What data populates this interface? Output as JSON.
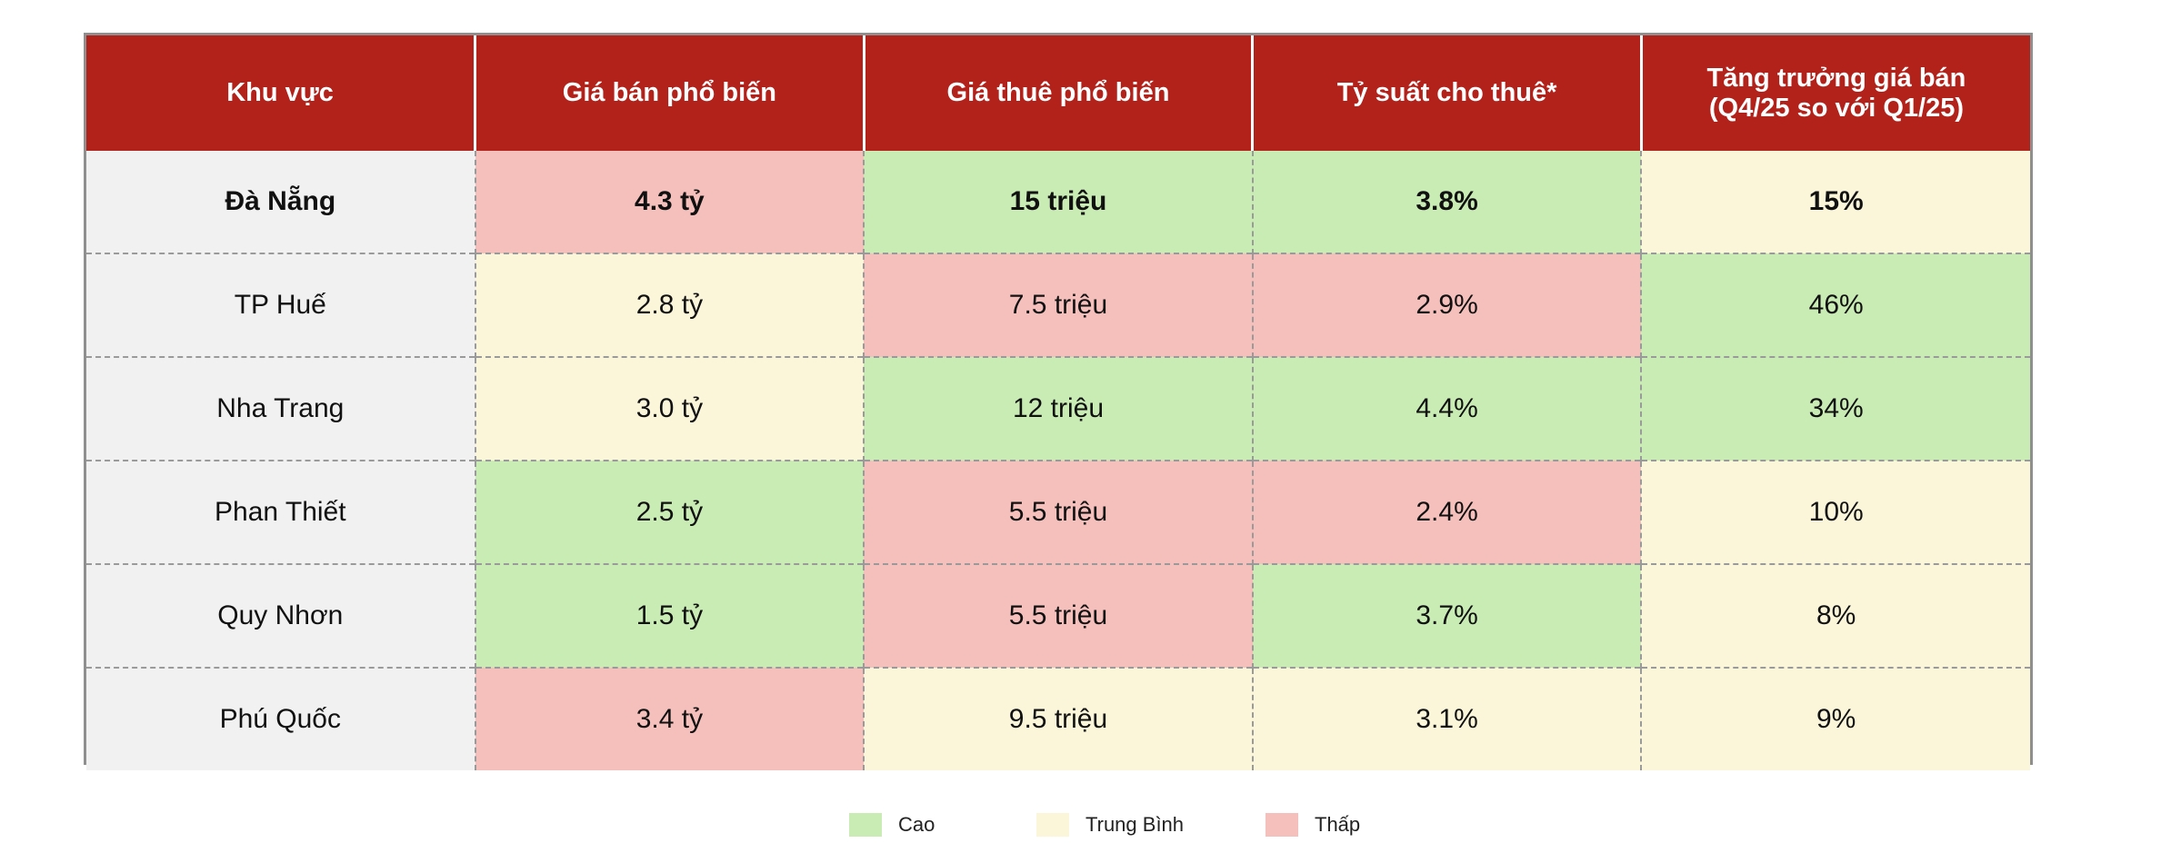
{
  "table": {
    "headers": [
      "Khu vực",
      "Giá bán phổ biến",
      "Giá thuê phổ biến",
      "Tỷ suất cho thuê*",
      "Tăng trưởng giá bán",
      "(Q4/25 so với Q1/25)"
    ],
    "rows": [
      {
        "region": "Đà Nẵng",
        "sale_price": "4.3 tỷ",
        "rent_price": "15 triệu",
        "rental_yield": "3.8%",
        "price_growth": "15%"
      },
      {
        "region": "TP Huế",
        "sale_price": "2.8 tỷ",
        "rent_price": "7.5 triệu",
        "rental_yield": "2.9%",
        "price_growth": "46%"
      },
      {
        "region": "Nha Trang",
        "sale_price": "3.0 tỷ",
        "rent_price": "12 triệu",
        "rental_yield": "4.4%",
        "price_growth": "34%"
      },
      {
        "region": "Phan Thiết",
        "sale_price": "2.5 tỷ",
        "rent_price": "5.5 triệu",
        "rental_yield": "2.4%",
        "price_growth": "10%"
      },
      {
        "region": "Quy Nhơn",
        "sale_price": "1.5 tỷ",
        "rent_price": "5.5 triệu",
        "rental_yield": "3.7%",
        "price_growth": "8%"
      },
      {
        "region": "Phú Quốc",
        "sale_price": "3.4 tỷ",
        "rent_price": "9.5 triệu",
        "rental_yield": "3.1%",
        "price_growth": "9%"
      }
    ],
    "cell_levels": [
      [
        "low",
        "high",
        "high",
        "mid"
      ],
      [
        "mid",
        "low",
        "low",
        "high"
      ],
      [
        "mid",
        "high",
        "high",
        "high"
      ],
      [
        "high",
        "low",
        "low",
        "mid"
      ],
      [
        "high",
        "low",
        "high",
        "mid"
      ],
      [
        "low",
        "mid",
        "mid",
        "mid"
      ]
    ]
  },
  "legend": [
    {
      "label": "Cao",
      "level": "high",
      "color": "#c9ecb4"
    },
    {
      "label": "Trung Bình",
      "level": "mid",
      "color": "#fbf6d9"
    },
    {
      "label": "Thấp",
      "level": "low",
      "color": "#f5c0bc"
    }
  ],
  "colors": {
    "header_bg": "#b2221b",
    "header_text": "#ffffff",
    "region_bg": "#f1f1f1",
    "high": "#c9ecb4",
    "mid": "#fbf6d9",
    "low": "#f5c0bc"
  }
}
